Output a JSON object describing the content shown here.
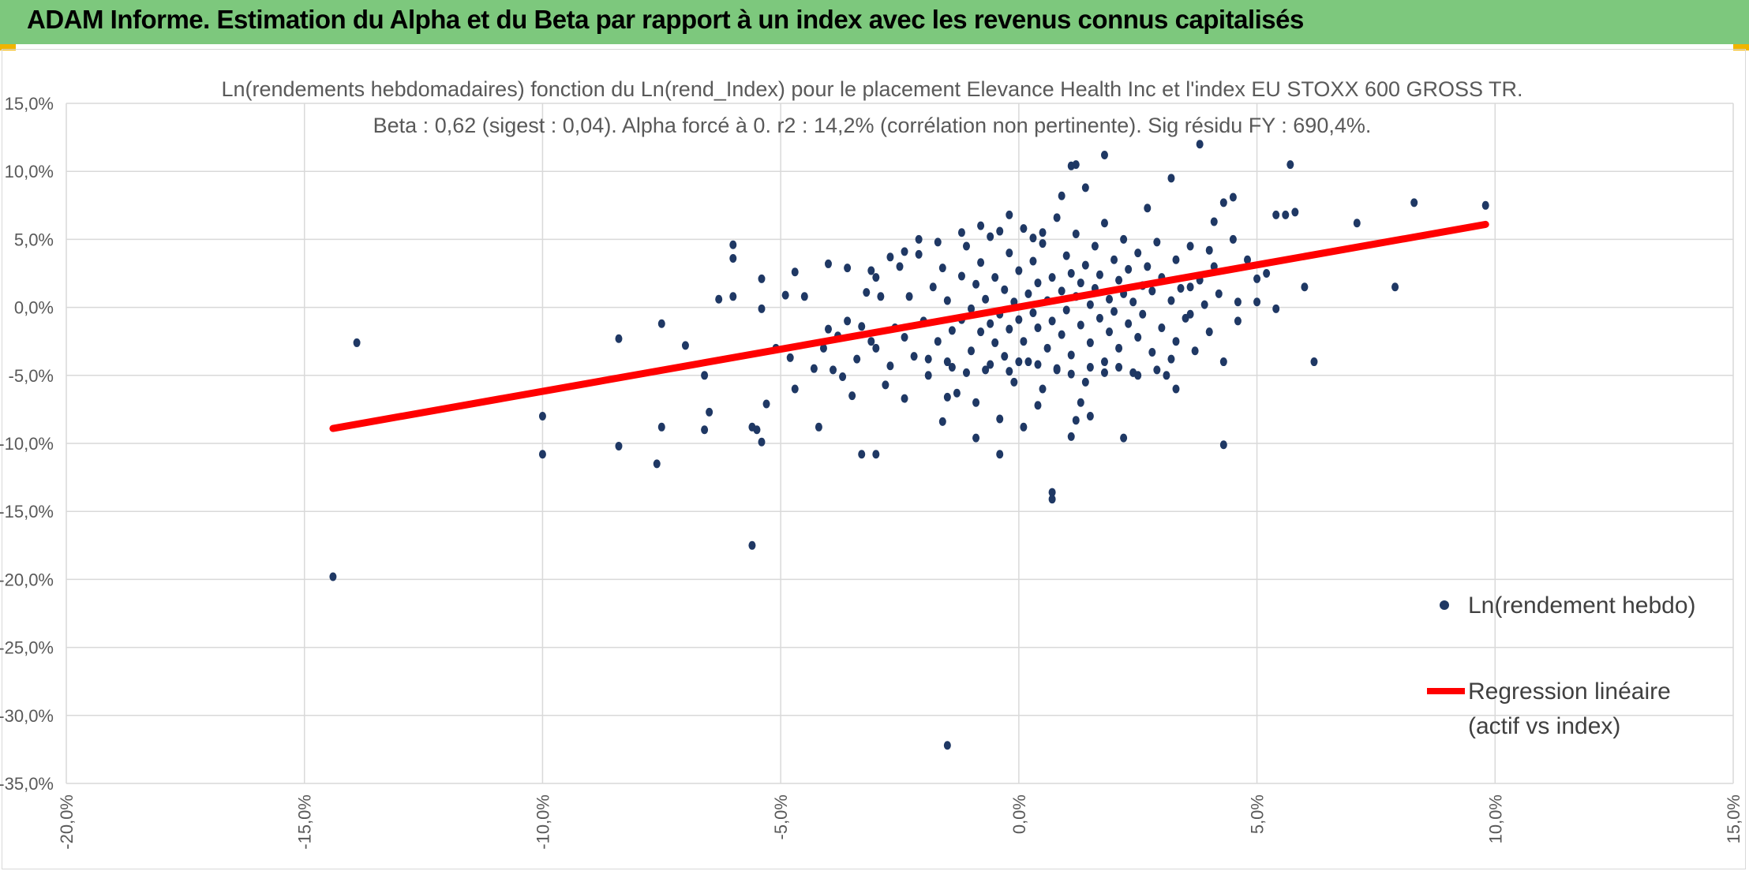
{
  "header": {
    "title": "ADAM Informe. Estimation du Alpha et du Beta par rapport à un index avec les revenus connus capitalisés"
  },
  "colors": {
    "header_bg": "#7dc87d",
    "points": "#1f3864",
    "regression": "#ff0000",
    "grid": "#d9d9d9",
    "text": "#595959"
  },
  "chart_data": {
    "type": "scatter",
    "title": "Ln(rendements hebdomadaires) fonction du Ln(rend_Index) pour le placement Elevance Health Inc et l'index EU STOXX 600 GROSS TR.",
    "subtitle": "Beta : 0,62 (sigest : 0,04). Alpha forcé à 0. r2 : 14,2% (corrélation non pertinente). Sig résidu FY : 690,4%.",
    "xlim": [
      -0.2,
      0.15
    ],
    "ylim": [
      -0.35,
      0.15
    ],
    "x_ticks": [
      -0.2,
      -0.15,
      -0.1,
      -0.05,
      0.0,
      0.05,
      0.1,
      0.15
    ],
    "x_tick_labels": [
      "-20,0%",
      "-15,0%",
      "-10,0%",
      "-5,0%",
      "0,0%",
      "5,0%",
      "10,0%",
      "15,0%"
    ],
    "y_ticks": [
      0.15,
      0.1,
      0.05,
      0.0,
      -0.05,
      -0.1,
      -0.15,
      -0.2,
      -0.25,
      -0.3,
      -0.35
    ],
    "y_tick_labels": [
      "15,0%",
      "10,0%",
      "5,0%",
      "0,0%",
      "-5,0%",
      "-10,0%",
      "-15,0%",
      "-20,0%",
      "-25,0%",
      "-30,0%",
      "-35,0%"
    ],
    "grid": true,
    "legend_position": "right",
    "series": [
      {
        "name": "Ln(rendement hebdo)",
        "kind": "points",
        "points": [
          [
            -0.144,
            -0.198
          ],
          [
            -0.139,
            -0.026
          ],
          [
            -0.1,
            -0.108
          ],
          [
            -0.1,
            -0.08
          ],
          [
            -0.084,
            -0.023
          ],
          [
            -0.084,
            -0.102
          ],
          [
            -0.075,
            -0.012
          ],
          [
            -0.075,
            -0.088
          ],
          [
            -0.076,
            -0.115
          ],
          [
            -0.07,
            -0.028
          ],
          [
            -0.066,
            -0.05
          ],
          [
            -0.066,
            -0.09
          ],
          [
            -0.065,
            -0.077
          ],
          [
            -0.063,
            0.006
          ],
          [
            -0.06,
            0.046
          ],
          [
            -0.06,
            0.036
          ],
          [
            -0.06,
            0.008
          ],
          [
            -0.056,
            -0.175
          ],
          [
            -0.056,
            -0.088
          ],
          [
            -0.055,
            -0.09
          ],
          [
            -0.054,
            -0.099
          ],
          [
            -0.054,
            -0.001
          ],
          [
            -0.054,
            0.021
          ],
          [
            -0.053,
            -0.071
          ],
          [
            -0.051,
            -0.03
          ],
          [
            -0.049,
            0.009
          ],
          [
            -0.048,
            -0.037
          ],
          [
            -0.047,
            0.026
          ],
          [
            -0.047,
            -0.06
          ],
          [
            -0.045,
            0.008
          ],
          [
            -0.043,
            -0.045
          ],
          [
            -0.042,
            -0.088
          ],
          [
            -0.041,
            -0.03
          ],
          [
            -0.04,
            0.032
          ],
          [
            -0.04,
            -0.016
          ],
          [
            -0.039,
            -0.046
          ],
          [
            -0.038,
            -0.021
          ],
          [
            -0.037,
            -0.051
          ],
          [
            -0.036,
            0.029
          ],
          [
            -0.036,
            -0.01
          ],
          [
            -0.035,
            -0.065
          ],
          [
            -0.034,
            -0.038
          ],
          [
            -0.033,
            -0.108
          ],
          [
            -0.033,
            -0.014
          ],
          [
            -0.032,
            0.011
          ],
          [
            -0.031,
            -0.025
          ],
          [
            -0.03,
            -0.03
          ],
          [
            -0.03,
            -0.108
          ],
          [
            -0.03,
            0.022
          ],
          [
            -0.029,
            0.008
          ],
          [
            -0.028,
            -0.057
          ],
          [
            -0.027,
            -0.043
          ],
          [
            -0.026,
            -0.015
          ],
          [
            -0.025,
            0.03
          ],
          [
            -0.024,
            -0.067
          ],
          [
            -0.024,
            -0.022
          ],
          [
            -0.023,
            0.008
          ],
          [
            -0.022,
            -0.036
          ],
          [
            -0.021,
            0.039
          ],
          [
            -0.02,
            -0.01
          ],
          [
            -0.019,
            -0.05
          ],
          [
            -0.018,
            0.015
          ],
          [
            -0.017,
            -0.025
          ],
          [
            -0.016,
            0.029
          ],
          [
            -0.015,
            -0.04
          ],
          [
            -0.015,
            0.005
          ],
          [
            -0.014,
            -0.017
          ],
          [
            -0.013,
            -0.063
          ],
          [
            -0.012,
            0.023
          ],
          [
            -0.012,
            -0.009
          ],
          [
            -0.011,
            0.045
          ],
          [
            -0.01,
            -0.032
          ],
          [
            -0.01,
            -0.001
          ],
          [
            -0.009,
            -0.07
          ],
          [
            -0.009,
            0.017
          ],
          [
            -0.008,
            -0.018
          ],
          [
            -0.008,
            0.033
          ],
          [
            -0.007,
            -0.046
          ],
          [
            -0.007,
            0.006
          ],
          [
            -0.006,
            -0.012
          ],
          [
            -0.006,
            0.052
          ],
          [
            -0.005,
            -0.026
          ],
          [
            -0.005,
            0.022
          ],
          [
            -0.004,
            -0.005
          ],
          [
            -0.004,
            -0.082
          ],
          [
            -0.003,
            0.013
          ],
          [
            -0.003,
            -0.036
          ],
          [
            -0.002,
            0.04
          ],
          [
            -0.002,
            -0.016
          ],
          [
            -0.001,
            0.004
          ],
          [
            -0.001,
            -0.055
          ],
          [
            0.0,
            0.027
          ],
          [
            0.0,
            -0.009
          ],
          [
            0.001,
            0.058
          ],
          [
            0.001,
            -0.025
          ],
          [
            0.002,
            0.01
          ],
          [
            0.002,
            -0.04
          ],
          [
            0.003,
            0.034
          ],
          [
            0.003,
            -0.004
          ],
          [
            0.004,
            -0.015
          ],
          [
            0.004,
            0.018
          ],
          [
            0.005,
            -0.06
          ],
          [
            0.005,
            0.047
          ],
          [
            0.006,
            -0.03
          ],
          [
            0.006,
            0.005
          ],
          [
            0.007,
            0.022
          ],
          [
            0.007,
            -0.01
          ],
          [
            0.008,
            0.066
          ],
          [
            0.008,
            -0.045
          ],
          [
            0.009,
            0.012
          ],
          [
            0.009,
            -0.02
          ],
          [
            0.01,
            0.038
          ],
          [
            0.01,
            -0.002
          ],
          [
            0.011,
            0.025
          ],
          [
            0.011,
            -0.035
          ],
          [
            0.012,
            0.008
          ],
          [
            0.012,
            0.054
          ],
          [
            0.013,
            -0.013
          ],
          [
            0.013,
            0.018
          ],
          [
            0.014,
            -0.055
          ],
          [
            0.014,
            0.031
          ],
          [
            0.015,
            0.002
          ],
          [
            0.015,
            -0.026
          ],
          [
            0.016,
            0.045
          ],
          [
            0.016,
            0.014
          ],
          [
            0.017,
            -0.008
          ],
          [
            0.017,
            0.024
          ],
          [
            0.018,
            -0.04
          ],
          [
            0.018,
            0.062
          ],
          [
            0.019,
            0.006
          ],
          [
            0.019,
            -0.018
          ],
          [
            0.02,
            0.035
          ],
          [
            0.02,
            -0.003
          ],
          [
            0.021,
            0.02
          ],
          [
            0.021,
            -0.03
          ],
          [
            0.022,
            0.05
          ],
          [
            0.022,
            0.01
          ],
          [
            0.023,
            -0.012
          ],
          [
            0.023,
            0.028
          ],
          [
            0.024,
            -0.048
          ],
          [
            0.024,
            0.004
          ],
          [
            0.025,
            0.04
          ],
          [
            0.025,
            -0.022
          ],
          [
            0.026,
            0.016
          ],
          [
            0.026,
            -0.005
          ],
          [
            0.027,
            0.03
          ],
          [
            0.028,
            -0.033
          ],
          [
            0.028,
            0.012
          ],
          [
            0.029,
            0.048
          ],
          [
            0.03,
            -0.015
          ],
          [
            0.03,
            0.022
          ],
          [
            0.031,
            -0.05
          ],
          [
            0.032,
            0.005
          ],
          [
            0.033,
            0.035
          ],
          [
            0.033,
            -0.025
          ],
          [
            0.034,
            0.014
          ],
          [
            0.035,
            -0.008
          ],
          [
            0.036,
            0.045
          ],
          [
            0.037,
            -0.032
          ],
          [
            0.038,
            0.02
          ],
          [
            0.039,
            0.002
          ],
          [
            0.04,
            -0.018
          ],
          [
            0.041,
            0.03
          ],
          [
            0.042,
            0.01
          ],
          [
            0.043,
            -0.04
          ],
          [
            0.045,
            0.05
          ],
          [
            0.046,
            -0.01
          ],
          [
            0.048,
            0.035
          ],
          [
            0.05,
            0.004
          ],
          [
            0.052,
            0.025
          ],
          [
            0.054,
            -0.001
          ],
          [
            0.056,
            0.068
          ],
          [
            0.058,
            0.07
          ],
          [
            0.06,
            0.015
          ],
          [
            0.062,
            -0.04
          ],
          [
            0.071,
            0.062
          ],
          [
            0.079,
            0.015
          ],
          [
            0.083,
            0.077
          ],
          [
            0.098,
            0.075
          ],
          [
            0.027,
            0.073
          ],
          [
            0.032,
            0.095
          ],
          [
            0.038,
            0.12
          ],
          [
            0.033,
            -0.06
          ],
          [
            0.036,
            -0.005
          ],
          [
            0.041,
            0.063
          ],
          [
            0.043,
            0.077
          ],
          [
            0.045,
            0.081
          ],
          [
            0.046,
            0.004
          ],
          [
            0.043,
            -0.101
          ],
          [
            0.057,
            0.105
          ],
          [
            0.05,
            0.021
          ],
          [
            0.054,
            0.068
          ],
          [
            0.036,
            0.015
          ],
          [
            0.04,
            0.042
          ],
          [
            0.009,
            0.082
          ],
          [
            0.014,
            0.088
          ],
          [
            0.011,
            0.104
          ],
          [
            0.012,
            0.105
          ],
          [
            0.018,
            0.112
          ],
          [
            0.007,
            -0.136
          ],
          [
            0.007,
            -0.141
          ],
          [
            0.004,
            -0.072
          ],
          [
            0.001,
            -0.088
          ],
          [
            -0.004,
            -0.108
          ],
          [
            -0.015,
            -0.322
          ],
          [
            -0.015,
            -0.066
          ],
          [
            -0.016,
            -0.084
          ],
          [
            -0.009,
            -0.096
          ],
          [
            0.012,
            -0.083
          ],
          [
            0.013,
            -0.07
          ],
          [
            0.015,
            -0.08
          ],
          [
            0.022,
            -0.096
          ],
          [
            0.011,
            -0.095
          ],
          [
            -0.002,
            0.068
          ],
          [
            0.003,
            0.051
          ],
          [
            -0.004,
            0.056
          ],
          [
            -0.008,
            0.06
          ],
          [
            -0.012,
            0.055
          ],
          [
            -0.017,
            0.048
          ],
          [
            -0.021,
            0.05
          ],
          [
            -0.024,
            0.041
          ],
          [
            -0.027,
            0.037
          ],
          [
            -0.031,
            0.027
          ],
          [
            0.005,
            0.055
          ],
          [
            0.018,
            -0.048
          ],
          [
            0.021,
            -0.044
          ],
          [
            0.025,
            -0.05
          ],
          [
            0.029,
            -0.046
          ],
          [
            0.032,
            -0.038
          ],
          [
            -0.002,
            -0.047
          ],
          [
            -0.006,
            -0.042
          ],
          [
            -0.011,
            -0.048
          ],
          [
            -0.014,
            -0.044
          ],
          [
            -0.019,
            -0.038
          ],
          [
            0.004,
            -0.042
          ],
          [
            0.008,
            -0.046
          ],
          [
            0.011,
            -0.049
          ],
          [
            0.015,
            -0.044
          ],
          [
            0.0,
            -0.04
          ]
        ]
      },
      {
        "name": "Regression linéaire (actif vs index)",
        "legend_lines": [
          "Regression linéaire",
          "(actif vs index)"
        ],
        "kind": "line",
        "points": [
          [
            -0.144,
            -0.089
          ],
          [
            0.098,
            0.061
          ]
        ]
      }
    ]
  }
}
